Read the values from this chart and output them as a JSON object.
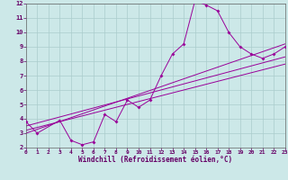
{
  "xlabel": "Windchill (Refroidissement éolien,°C)",
  "xlim_min": 0,
  "xlim_max": 23,
  "ylim_min": 2,
  "ylim_max": 12,
  "xticks": [
    0,
    1,
    2,
    3,
    4,
    5,
    6,
    7,
    8,
    9,
    10,
    11,
    12,
    13,
    14,
    15,
    16,
    17,
    18,
    19,
    20,
    21,
    22,
    23
  ],
  "yticks": [
    2,
    3,
    4,
    5,
    6,
    7,
    8,
    9,
    10,
    11,
    12
  ],
  "line_color": "#990099",
  "bg_color": "#cce8e8",
  "grid_color": "#aacccc",
  "main_x": [
    0,
    1,
    3,
    4,
    5,
    6,
    7,
    8,
    9,
    10,
    11,
    12,
    13,
    14,
    15,
    16,
    17,
    18,
    19,
    20,
    21,
    22,
    23
  ],
  "main_y": [
    3.8,
    3.0,
    3.9,
    2.5,
    2.2,
    2.4,
    4.3,
    3.8,
    5.3,
    4.8,
    5.3,
    7.0,
    8.5,
    9.2,
    12.2,
    11.9,
    11.5,
    10.0,
    9.0,
    8.5,
    8.2,
    8.5,
    9.0
  ],
  "trend_lines": [
    {
      "x": [
        0,
        23
      ],
      "y": [
        3.5,
        8.3
      ]
    },
    {
      "x": [
        0,
        23
      ],
      "y": [
        3.2,
        7.8
      ]
    },
    {
      "x": [
        0,
        23
      ],
      "y": [
        3.0,
        9.2
      ]
    }
  ]
}
